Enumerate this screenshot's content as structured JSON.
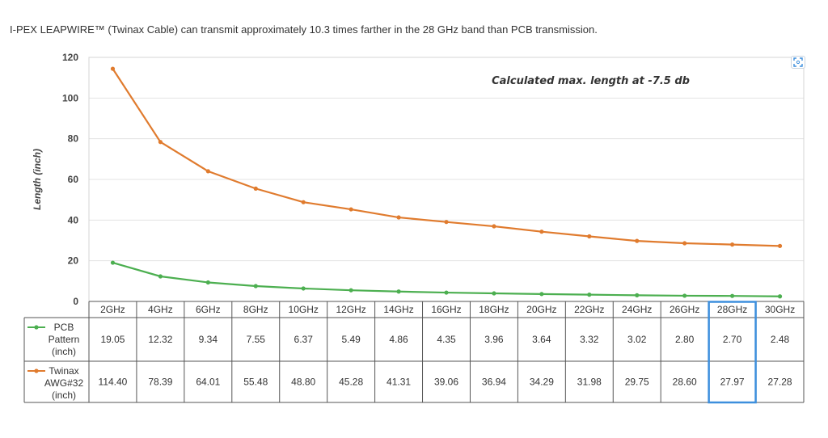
{
  "caption": "I-PEX LEAPWIRE™ (Twinax Cable) can transmit approximately 10.3 times farther in the 28 GHz band than PCB transmission.",
  "expand_icon": "expand-icon",
  "chart_data": {
    "type": "line",
    "annotation": "Calculated max. length at -7.5 db",
    "ylabel": "Length (inch)",
    "xlabel": "",
    "ylim": [
      0,
      120
    ],
    "yticks": [
      0,
      20,
      40,
      60,
      80,
      100,
      120
    ],
    "grid": true,
    "legend_placement": "left (data table)",
    "highlight_category": "28GHz",
    "highlight_color": "#3d8fdd",
    "categories": [
      "2GHz",
      "4GHz",
      "6GHz",
      "8GHz",
      "10GHz",
      "12GHz",
      "14GHz",
      "16GHz",
      "18GHz",
      "20GHz",
      "22GHz",
      "24GHz",
      "26GHz",
      "28GHz",
      "30GHz"
    ],
    "series": [
      {
        "name": "PCB Pattern (inch)",
        "label_lines": [
          "PCB",
          "Pattern",
          "(inch)"
        ],
        "color": "#4caf50",
        "values": [
          19.05,
          12.32,
          9.34,
          7.55,
          6.37,
          5.49,
          4.86,
          4.35,
          3.96,
          3.64,
          3.32,
          3.02,
          2.8,
          2.7,
          2.48
        ],
        "labels": [
          "19.05",
          "12.32",
          "9.34",
          "7.55",
          "6.37",
          "5.49",
          "4.86",
          "4.35",
          "3.96",
          "3.64",
          "3.32",
          "3.02",
          "2.80",
          "2.70",
          "2.48"
        ]
      },
      {
        "name": "Twinax AWG#32 (inch)",
        "label_lines": [
          "Twinax",
          "AWG#32",
          "(inch)"
        ],
        "color": "#e07b2e",
        "values": [
          114.4,
          78.39,
          64.01,
          55.48,
          48.8,
          45.28,
          41.31,
          39.06,
          36.94,
          34.29,
          31.98,
          29.75,
          28.6,
          27.97,
          27.28
        ],
        "labels": [
          "114.40",
          "78.39",
          "64.01",
          "55.48",
          "48.80",
          "45.28",
          "41.31",
          "39.06",
          "36.94",
          "34.29",
          "31.98",
          "29.75",
          "28.60",
          "27.97",
          "27.28"
        ]
      }
    ]
  }
}
